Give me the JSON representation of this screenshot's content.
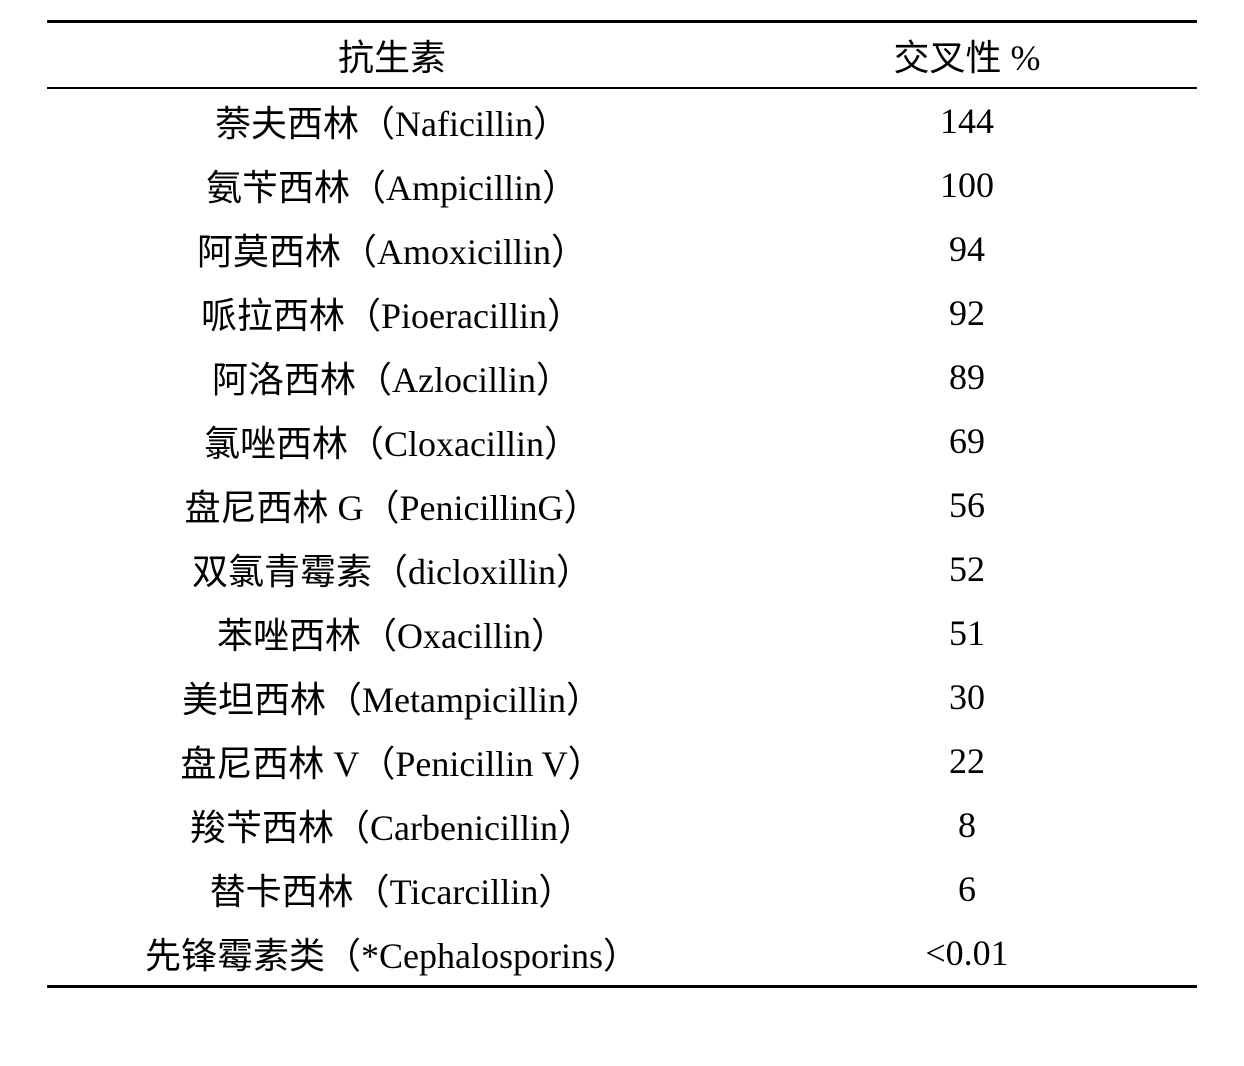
{
  "table": {
    "columns": [
      "抗生素",
      "交叉性 %"
    ],
    "rows": [
      [
        "萘夫西林（Naficillin）",
        "144"
      ],
      [
        "氨苄西林（Ampicillin）",
        "100"
      ],
      [
        "阿莫西林（Amoxicillin）",
        "94"
      ],
      [
        "哌拉西林（Pioeracillin）",
        "92"
      ],
      [
        "阿洛西林（Azlocillin）",
        "89"
      ],
      [
        "氯唑西林（Cloxacillin）",
        "69"
      ],
      [
        "盘尼西林 G（PenicillinG）",
        "56"
      ],
      [
        "双氯青霉素（dicloxillin）",
        "52"
      ],
      [
        "苯唑西林（Oxacillin）",
        "51"
      ],
      [
        "美坦西林（Metampicillin）",
        "30"
      ],
      [
        "盘尼西林 V（Penicillin V）",
        "22"
      ],
      [
        "羧苄西林（Carbenicillin）",
        "8"
      ],
      [
        "替卡西林（Ticarcillin）",
        "6"
      ],
      [
        "先锋霉素类（*Cephalosporins）",
        "<0.01"
      ]
    ],
    "border_color": "#000000",
    "background_color": "#ffffff",
    "font_size": 36,
    "header_font_size": 36,
    "border_top_width": 3,
    "border_bottom_width": 3,
    "header_border_width": 2
  }
}
